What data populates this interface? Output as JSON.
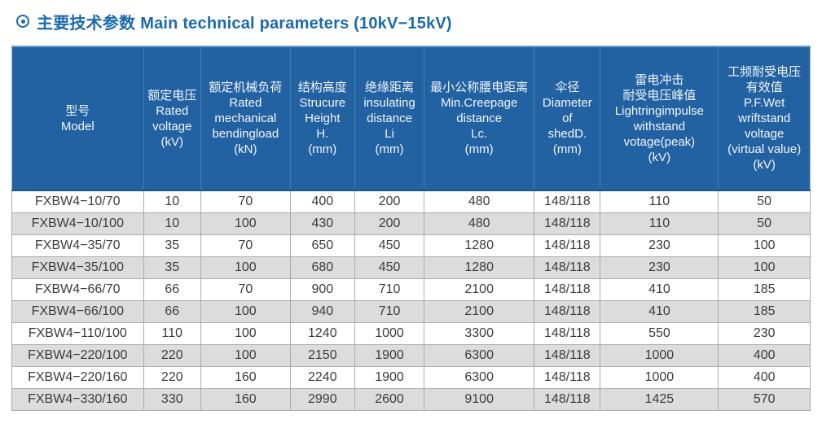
{
  "page": {
    "title_zh": "主要技术参数",
    "title_en": "Main technical parameters (10kV−15kV)"
  },
  "table": {
    "columns": [
      {
        "id": "model",
        "lines": [
          "型号",
          "Model"
        ]
      },
      {
        "id": "rated-voltage",
        "lines": [
          "额定电压",
          "Rated",
          "voltage",
          "(kV)"
        ]
      },
      {
        "id": "bending-load",
        "lines": [
          "额定机械负荷",
          "Rated",
          "mechanical",
          "bendingload",
          "(kN)"
        ]
      },
      {
        "id": "structure-height",
        "lines": [
          "结构高度",
          "Strucure",
          "Height",
          "H.",
          "(mm)"
        ]
      },
      {
        "id": "insulating-distance",
        "lines": [
          "绝缘距离",
          "insulating",
          "distance",
          "Li",
          "(mm)"
        ]
      },
      {
        "id": "creepage-distance",
        "lines": [
          "最小公称腰电距离",
          "Min.Creepage",
          "distance",
          "Lc.",
          "(mm)"
        ]
      },
      {
        "id": "shed-diameter",
        "lines": [
          "伞径",
          "Diameter",
          "of",
          "shedD.",
          "(mm)"
        ]
      },
      {
        "id": "lightning-impulse",
        "lines": [
          "雷电冲击",
          "耐受电压峰值",
          "Lightringimpulse",
          "withstand",
          "votage(peak)",
          "(kV)"
        ]
      },
      {
        "id": "pf-wet-withstand",
        "lines": [
          "工频耐受电压",
          "有效值",
          "P.F.Wet",
          "wriftstand",
          "voltage",
          "(virtual value)",
          "(kV)"
        ]
      }
    ],
    "rows": [
      [
        "FXBW4−10/70",
        "10",
        "70",
        "400",
        "200",
        "480",
        "148/118",
        "110",
        "50"
      ],
      [
        "FXBW4−10/100",
        "10",
        "100",
        "430",
        "200",
        "480",
        "148/118",
        "110",
        "50"
      ],
      [
        "FXBW4−35/70",
        "35",
        "70",
        "650",
        "450",
        "1280",
        "148/118",
        "230",
        "100"
      ],
      [
        "FXBW4−35/100",
        "35",
        "100",
        "680",
        "450",
        "1280",
        "148/118",
        "230",
        "100"
      ],
      [
        "FXBW4−66/70",
        "66",
        "70",
        "900",
        "710",
        "2100",
        "148/118",
        "410",
        "185"
      ],
      [
        "FXBW4−66/100",
        "66",
        "100",
        "940",
        "710",
        "2100",
        "148/118",
        "410",
        "185"
      ],
      [
        "FXBW4−110/100",
        "110",
        "100",
        "1240",
        "1000",
        "3300",
        "148/118",
        "550",
        "230"
      ],
      [
        "FXBW4−220/100",
        "220",
        "100",
        "2150",
        "1900",
        "6300",
        "148/118",
        "1000",
        "400"
      ],
      [
        "FXBW4−220/160",
        "220",
        "160",
        "2240",
        "1900",
        "6300",
        "148/118",
        "1000",
        "400"
      ],
      [
        "FXBW4−330/160",
        "330",
        "160",
        "2990",
        "2600",
        "9100",
        "148/118",
        "1425",
        "570"
      ]
    ]
  },
  "colors": {
    "accent_blue": "#1b6aad",
    "header_bg": "#2262a2",
    "row_alt_bg": "#dcdcdc"
  }
}
